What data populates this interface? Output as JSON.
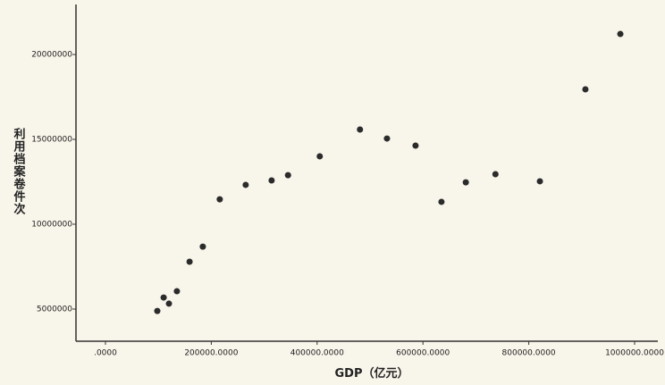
{
  "chart_data": {
    "type": "scatter",
    "x_label": "GDP（亿元）",
    "y_label": "利用档案卷件次",
    "color": "#2b2b2b",
    "x": [
      98000,
      110000,
      120000,
      135000,
      159000,
      184000,
      216000,
      265000,
      314000,
      345000,
      405000,
      481000,
      532000,
      586000,
      635000,
      681000,
      737000,
      821000,
      907000,
      973000
    ],
    "values": [
      4890000,
      5680000,
      5320000,
      6050000,
      7790000,
      8680000,
      11470000,
      12320000,
      12580000,
      12890000,
      14000000,
      15580000,
      15050000,
      14630000,
      11320000,
      12470000,
      12950000,
      12530000,
      17950000,
      21210000
    ],
    "xlim": [
      -55700,
      1043900
    ],
    "ylim": [
      3105000,
      22950000
    ],
    "xticks": [
      {
        "value": 0,
        "label": ".0000"
      },
      {
        "value": 200000,
        "label": "200000.0000"
      },
      {
        "value": 400000,
        "label": "400000.0000"
      },
      {
        "value": 600000,
        "label": "600000.0000"
      },
      {
        "value": 800000,
        "label": "800000.0000"
      },
      {
        "value": 1000000,
        "label": "1000000.0000"
      }
    ],
    "yticks": [
      5000000,
      10000000,
      15000000,
      20000000
    ],
    "grid": false
  }
}
